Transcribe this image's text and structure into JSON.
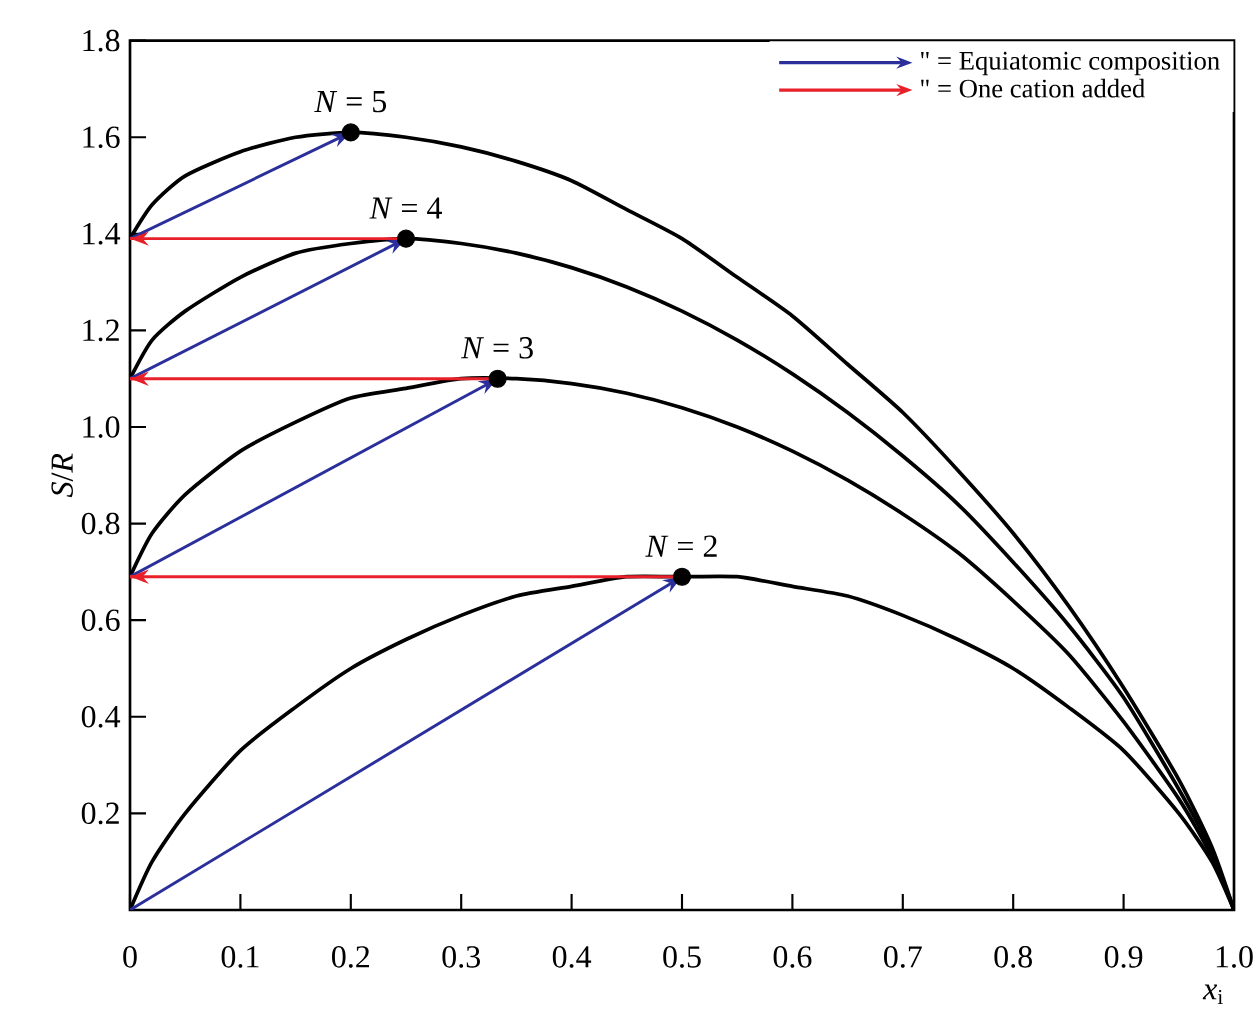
{
  "chart_data": {
    "type": "line",
    "xlabel": "*x*$_{i}$",
    "ylabel": "*S*/*R*",
    "xlim": [
      0,
      1
    ],
    "ylim": [
      0,
      1.8
    ],
    "xticks": [
      0,
      {
        "value": 0.1,
        "label": "0.1"
      },
      {
        "value": 0.2,
        "label": "0.2"
      },
      {
        "value": 0.3,
        "label": "0.3"
      },
      {
        "value": 0.4,
        "label": "0.4"
      },
      {
        "value": 0.5,
        "label": "0.5"
      },
      {
        "value": 0.6,
        "label": "0.6"
      },
      {
        "value": 0.7,
        "label": "0.7"
      },
      {
        "value": 0.8,
        "label": "0.8"
      },
      {
        "value": 0.9,
        "label": "0.9"
      },
      {
        "value": 1,
        "label": "1.0"
      }
    ],
    "yticks": [
      {
        "value": 0,
        "label": null
      },
      {
        "value": 0.2,
        "label": "0.2"
      },
      {
        "value": 0.4,
        "label": "0.4"
      },
      {
        "value": 0.6,
        "label": "0.6"
      },
      {
        "value": 0.8,
        "label": "0.8"
      },
      {
        "value": 1,
        "label": "1.0"
      },
      {
        "value": 1.2,
        "label": "1.2"
      },
      {
        "value": 1.4,
        "label": "1.4"
      },
      {
        "value": 1.6,
        "label": "1.6"
      },
      {
        "value": 1.8,
        "label": "1.8"
      }
    ],
    "grid": false,
    "legend": "top right",
    "x": [
      0,
      0.02,
      0.05,
      0.1,
      0.15,
      0.2,
      0.25,
      0.3,
      0.35,
      0.4,
      0.45,
      0.5,
      0.55,
      0.6,
      0.65,
      0.7,
      0.75,
      0.8,
      0.85,
      0.9,
      0.95,
      0.98,
      1
    ],
    "series": [
      {
        "color": "#000000",
        "values": [
          0,
          0.1,
          0.2,
          0.33,
          0.42,
          0.5,
          0.56,
          0.61,
          0.65,
          0.67,
          0.69,
          0.69,
          0.69,
          0.67,
          0.65,
          0.61,
          0.56,
          0.5,
          0.42,
          0.33,
          0.2,
          0.1,
          0
        ]
      },
      {
        "color": "#000000",
        "values": [
          0.69,
          0.78,
          0.86,
          0.95,
          1.01,
          1.06,
          1.08,
          1.1,
          1.1,
          1.09,
          1.07,
          1.04,
          1.0,
          0.95,
          0.89,
          0.82,
          0.74,
          0.64,
          0.53,
          0.39,
          0.23,
          0.11,
          0
        ]
      },
      {
        "color": "#000000",
        "values": [
          1.1,
          1.18,
          1.24,
          1.31,
          1.36,
          1.38,
          1.39,
          1.38,
          1.36,
          1.33,
          1.29,
          1.24,
          1.18,
          1.11,
          1.03,
          0.94,
          0.84,
          0.72,
          0.59,
          0.44,
          0.25,
          0.12,
          0
        ]
      },
      {
        "color": "#000000",
        "values": [
          1.39,
          1.46,
          1.52,
          1.57,
          1.6,
          1.61,
          1.6,
          1.58,
          1.55,
          1.51,
          1.45,
          1.39,
          1.31,
          1.23,
          1.13,
          1.03,
          0.91,
          0.78,
          0.63,
          0.46,
          0.27,
          0.13,
          0
        ]
      },
      {
        "name": "\" = Equiatomic composition",
        "color": "#2b2f9b",
        "x": [
          0,
          0.5
        ],
        "values": [
          0,
          0.69
        ]
      },
      {
        "color": "#2b2f9b",
        "x": [
          0,
          0.333
        ],
        "values": [
          0.69,
          1.1
        ]
      },
      {
        "color": "#2b2f9b",
        "x": [
          0,
          0.25
        ],
        "values": [
          1.1,
          1.39
        ]
      },
      {
        "color": "#2b2f9b",
        "x": [
          0,
          0.2
        ],
        "values": [
          1.39,
          1.61
        ]
      },
      {
        "name": "\" = One cation added",
        "color": "#e8202a",
        "x": [
          0.5,
          0
        ],
        "values": [
          0.69,
          0.69
        ]
      },
      {
        "color": "#e8202a",
        "x": [
          0.333,
          0
        ],
        "values": [
          1.1,
          1.1
        ]
      },
      {
        "color": "#e8202a",
        "x": [
          0.25,
          0
        ],
        "values": [
          1.39,
          1.39
        ]
      },
      {
        "type": "scatter",
        "marker": "circle",
        "color": "#000000",
        "x": [
          0.5,
          0.333,
          0.25,
          0.2
        ],
        "values": [
          0.69,
          1.1,
          1.39,
          1.61
        ]
      }
    ],
    "annotations": [
      {
        "text": "*N* = 2",
        "x": 0.5,
        "y": 0.69
      },
      {
        "text": "*N* = 3",
        "x": 0.333,
        "y": 1.1
      },
      {
        "text": "*N* = 4",
        "x": 0.25,
        "y": 1.39
      },
      {
        "text": "*N* = 5",
        "x": 0.2,
        "y": 1.61
      }
    ]
  }
}
